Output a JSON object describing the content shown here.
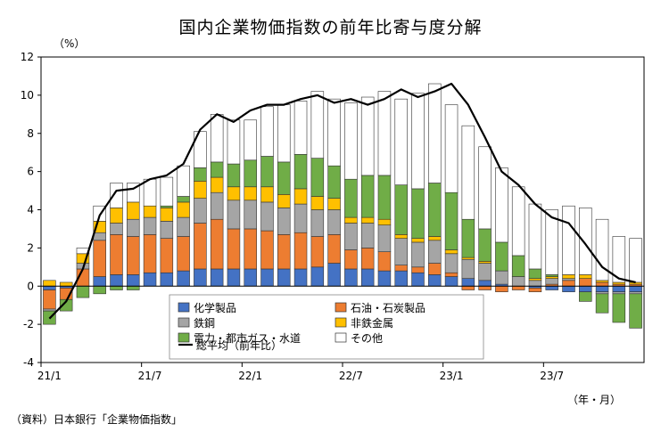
{
  "header": {
    "title": "国内企業物価指数の前年比寄与度分解",
    "unit": "（%）",
    "x_unit": "（年・月）",
    "source": "（資料）日本銀行「企業物価指数」"
  },
  "chart_data": {
    "type": "bar",
    "stacked": true,
    "title": "国内企業物価指数の前年比寄与度分解",
    "ylabel": "（%）",
    "xlabel": "（年・月）",
    "ylim": [
      -4,
      12
    ],
    "yticks": [
      -4,
      -2,
      0,
      2,
      4,
      6,
      8,
      10,
      12
    ],
    "xtick_labels": [
      {
        "index": 0,
        "label": "21/1"
      },
      {
        "index": 6,
        "label": "21/7"
      },
      {
        "index": 12,
        "label": "22/1"
      },
      {
        "index": 18,
        "label": "22/7"
      },
      {
        "index": 24,
        "label": "23/1"
      },
      {
        "index": 30,
        "label": "23/7"
      }
    ],
    "grid": false,
    "legend_position": "bottom-center inside plot",
    "categories": [
      "2021/01",
      "2021/02",
      "2021/03",
      "2021/04",
      "2021/05",
      "2021/06",
      "2021/07",
      "2021/08",
      "2021/09",
      "2021/10",
      "2021/11",
      "2021/12",
      "2022/01",
      "2022/02",
      "2022/03",
      "2022/04",
      "2022/05",
      "2022/06",
      "2022/07",
      "2022/08",
      "2022/09",
      "2022/10",
      "2022/11",
      "2022/12",
      "2023/01",
      "2023/02",
      "2023/03",
      "2023/04",
      "2023/05",
      "2023/06",
      "2023/07",
      "2023/08",
      "2023/09",
      "2023/10",
      "2023/11",
      "2023/12"
    ],
    "series": [
      {
        "name": "化学製品",
        "color": "#4472C4",
        "values": [
          -0.2,
          -0.1,
          0.0,
          0.5,
          0.6,
          0.6,
          0.7,
          0.7,
          0.8,
          0.9,
          0.9,
          0.9,
          0.9,
          0.9,
          0.9,
          0.9,
          1.0,
          1.2,
          0.9,
          0.9,
          0.8,
          0.8,
          0.7,
          0.6,
          0.5,
          0.4,
          0.3,
          0.1,
          0.0,
          -0.1,
          -0.2,
          -0.3,
          -0.3,
          -0.3,
          -0.3,
          -0.3
        ]
      },
      {
        "name": "石油・石炭製品",
        "color": "#ED7D31",
        "values": [
          -1.0,
          -0.6,
          0.9,
          1.9,
          2.1,
          2.0,
          2.0,
          1.8,
          1.8,
          2.4,
          2.6,
          2.1,
          2.1,
          2.0,
          1.8,
          1.9,
          1.6,
          1.5,
          1.0,
          1.1,
          1.0,
          0.3,
          0.3,
          0.6,
          0.2,
          -0.2,
          -0.2,
          -0.3,
          -0.2,
          -0.2,
          0.1,
          0.3,
          0.4,
          0.2,
          0.1,
          0.1
        ]
      },
      {
        "name": "鉄鋼",
        "color": "#A5A5A5",
        "values": [
          -0.1,
          0.0,
          0.3,
          0.4,
          0.6,
          0.9,
          0.9,
          0.9,
          1.0,
          1.3,
          1.4,
          1.5,
          1.5,
          1.5,
          1.4,
          1.5,
          1.4,
          1.3,
          1.4,
          1.3,
          1.4,
          1.4,
          1.3,
          1.2,
          1.0,
          1.0,
          0.9,
          0.7,
          0.5,
          0.3,
          0.3,
          0.1,
          0.0,
          -0.1,
          -0.1,
          -0.1
        ]
      },
      {
        "name": "非鉄金属",
        "color": "#FFC000",
        "values": [
          0.3,
          0.2,
          0.5,
          0.6,
          0.8,
          0.9,
          0.6,
          0.7,
          0.8,
          0.9,
          0.8,
          0.7,
          0.7,
          0.8,
          0.7,
          0.8,
          0.7,
          0.6,
          0.3,
          0.3,
          0.3,
          0.2,
          0.2,
          0.2,
          0.2,
          0.1,
          0.1,
          0.0,
          0.0,
          0.1,
          0.1,
          0.2,
          0.2,
          0.1,
          0.1,
          0.1
        ]
      },
      {
        "name": "電力・都市ガス・水道",
        "color": "#70AD47",
        "values": [
          -0.7,
          -0.6,
          -0.6,
          -0.4,
          -0.2,
          -0.2,
          0.0,
          0.1,
          0.3,
          0.7,
          0.8,
          1.2,
          1.4,
          1.6,
          1.7,
          1.8,
          2.0,
          1.7,
          2.0,
          2.2,
          2.3,
          2.6,
          2.6,
          2.8,
          3.0,
          2.0,
          1.7,
          1.5,
          1.1,
          0.5,
          0.1,
          0.0,
          -0.5,
          -1.0,
          -1.5,
          -1.8
        ]
      },
      {
        "name": "その他",
        "color": "#FFFFFF",
        "values": [
          0.0,
          0.0,
          0.3,
          0.8,
          1.3,
          1.0,
          1.4,
          1.5,
          1.6,
          1.9,
          2.5,
          2.3,
          2.1,
          2.6,
          3.0,
          2.8,
          3.5,
          3.5,
          4.0,
          4.1,
          4.4,
          4.5,
          5.0,
          5.2,
          4.6,
          4.9,
          4.3,
          3.9,
          3.6,
          3.4,
          3.4,
          3.6,
          3.5,
          3.2,
          2.4,
          2.3
        ]
      }
    ],
    "line": {
      "name": "総平均（前年比）",
      "color": "#000000",
      "values": [
        -1.7,
        -0.8,
        0.9,
        3.7,
        5.0,
        5.1,
        5.6,
        5.8,
        6.4,
        8.2,
        9.0,
        8.6,
        9.2,
        9.5,
        9.5,
        9.8,
        10.0,
        9.6,
        9.8,
        9.5,
        9.8,
        10.3,
        9.9,
        10.2,
        10.6,
        9.5,
        7.8,
        6.0,
        5.3,
        4.3,
        3.6,
        3.3,
        2.2,
        1.0,
        0.4,
        0.2
      ]
    }
  }
}
